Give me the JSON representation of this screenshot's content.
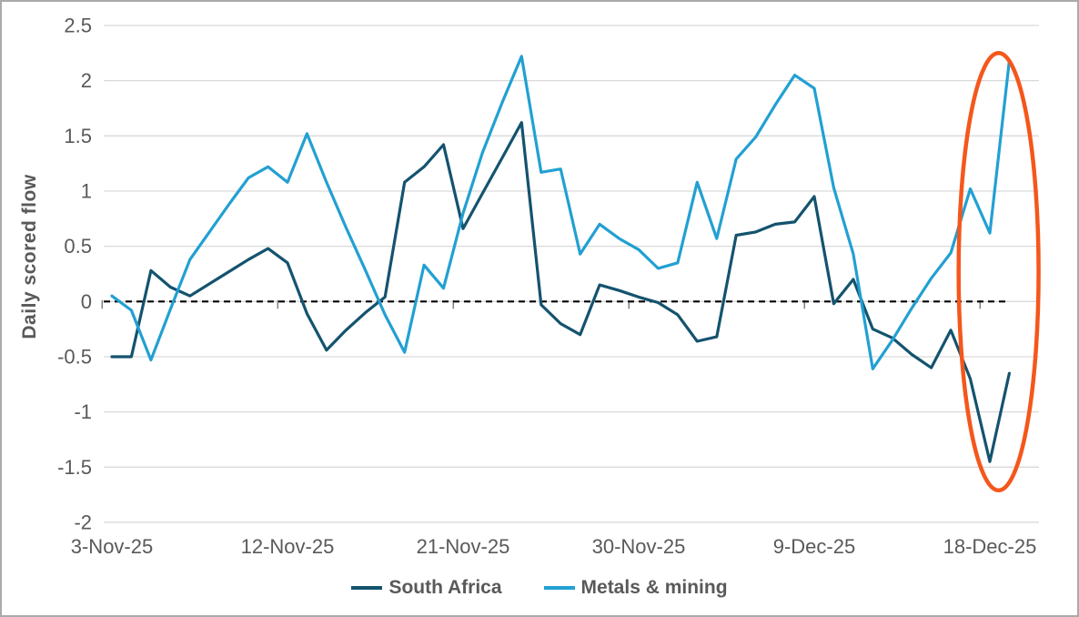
{
  "page": {
    "background": "#FFFFFF",
    "border_color": "#ABABAB"
  },
  "colors": {
    "gridline": "#D9D9D9",
    "axis_text": "#595959",
    "tick_mark": "#808080",
    "zero_line": "#000000",
    "south_africa_line": "#14536E",
    "metals_mining_line": "#22A0D2",
    "annotation_orange": "#F4571C"
  },
  "chart_data": {
    "type": "line",
    "title": "",
    "xlabel": "",
    "ylabel": "Daily scored flow",
    "ylim": [
      -2,
      2.5
    ],
    "grid": "horizontal",
    "legend_position": "bottom",
    "zero_line_style": "dashed-black",
    "y_ticks": [
      2.5,
      2,
      1.5,
      1,
      0.5,
      0,
      -0.5,
      -1,
      -1.5,
      -2
    ],
    "y_tick_labels": [
      "2.5",
      "2",
      "1.5",
      "1",
      "0.5",
      "0",
      "-0.5",
      "-1",
      "-1.5",
      "-2"
    ],
    "x_tick_labels": [
      "3-Nov-25",
      "12-Nov-25",
      "21-Nov-25",
      "30-Nov-25",
      "9-Dec-25",
      "18-Dec-25"
    ],
    "x_tick_indices": [
      0,
      9,
      18,
      27,
      36,
      45
    ],
    "x": [
      "3-Nov-25",
      "4-Nov-25",
      "5-Nov-25",
      "6-Nov-25",
      "7-Nov-25",
      "8-Nov-25",
      "9-Nov-25",
      "10-Nov-25",
      "11-Nov-25",
      "12-Nov-25",
      "13-Nov-25",
      "14-Nov-25",
      "15-Nov-25",
      "16-Nov-25",
      "17-Nov-25",
      "18-Nov-25",
      "19-Nov-25",
      "20-Nov-25",
      "21-Nov-25",
      "22-Nov-25",
      "23-Nov-25",
      "24-Nov-25",
      "25-Nov-25",
      "26-Nov-25",
      "27-Nov-25",
      "28-Nov-25",
      "29-Nov-25",
      "30-Nov-25",
      "1-Dec-25",
      "2-Dec-25",
      "3-Dec-25",
      "4-Dec-25",
      "5-Dec-25",
      "6-Dec-25",
      "7-Dec-25",
      "8-Dec-25",
      "9-Dec-25",
      "10-Dec-25",
      "11-Dec-25",
      "12-Dec-25",
      "13-Dec-25",
      "14-Dec-25",
      "15-Dec-25",
      "16-Dec-25",
      "17-Dec-25",
      "18-Dec-25",
      "19-Dec-25"
    ],
    "series": [
      {
        "name": "South Africa",
        "color": "#14536E",
        "values": [
          -0.5,
          -0.5,
          0.28,
          0.13,
          0.05,
          0.16,
          0.27,
          0.38,
          0.48,
          0.35,
          -0.11,
          -0.44,
          -0.26,
          -0.1,
          0.04,
          1.08,
          1.22,
          1.42,
          0.66,
          0.98,
          1.3,
          1.62,
          -0.03,
          -0.2,
          -0.3,
          0.15,
          0.1,
          0.04,
          -0.01,
          -0.12,
          -0.36,
          -0.32,
          0.6,
          0.63,
          0.7,
          0.72,
          0.95,
          -0.02,
          0.2,
          -0.25,
          -0.33,
          -0.48,
          -0.6,
          -0.26,
          -0.7,
          -1.45,
          -0.65
        ]
      },
      {
        "name": "Metals & mining",
        "color": "#22A0D2",
        "values": [
          0.05,
          -0.08,
          -0.53,
          -0.07,
          0.38,
          0.63,
          0.88,
          1.12,
          1.22,
          1.08,
          1.52,
          1.08,
          0.67,
          0.28,
          -0.12,
          -0.46,
          0.33,
          0.12,
          0.8,
          1.35,
          1.8,
          2.22,
          1.17,
          1.2,
          0.43,
          0.7,
          0.57,
          0.47,
          0.3,
          0.35,
          1.08,
          0.57,
          1.29,
          1.49,
          1.78,
          2.05,
          1.93,
          1.03,
          0.43,
          -0.61,
          -0.35,
          -0.06,
          0.21,
          0.44,
          1.02,
          0.62,
          2.18
        ]
      }
    ],
    "annotation": {
      "shape": "ellipse",
      "color": "#F4571C",
      "center_index": 45.45,
      "radius_days": 2.05,
      "center_value": 0.27,
      "radius_value": 1.98,
      "highlights": "final days divergence: Metals & mining spike up, South Africa drop"
    }
  },
  "legend": {
    "items": [
      {
        "label": "South Africa"
      },
      {
        "label": "Metals & mining"
      }
    ]
  }
}
